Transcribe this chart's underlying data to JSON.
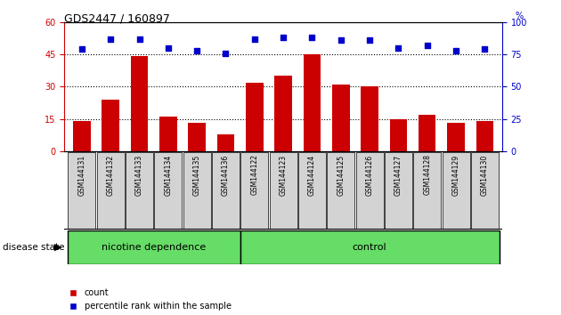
{
  "title": "GDS2447 / 160897",
  "samples": [
    "GSM144131",
    "GSM144132",
    "GSM144133",
    "GSM144134",
    "GSM144135",
    "GSM144136",
    "GSM144122",
    "GSM144123",
    "GSM144124",
    "GSM144125",
    "GSM144126",
    "GSM144127",
    "GSM144128",
    "GSM144129",
    "GSM144130"
  ],
  "counts": [
    14,
    24,
    44,
    16,
    13,
    8,
    32,
    35,
    45,
    31,
    30,
    15,
    17,
    13,
    14
  ],
  "percentiles": [
    79,
    87,
    87,
    80,
    78,
    76,
    87,
    88,
    88,
    86,
    86,
    80,
    82,
    78,
    79
  ],
  "nicotine_count": 6,
  "control_count": 9,
  "bar_color": "#cc0000",
  "dot_color": "#0000cc",
  "group_bg": "#66dd66",
  "tick_bg": "#d3d3d3",
  "ylim_left": [
    0,
    60
  ],
  "ylim_right": [
    0,
    100
  ],
  "yticks_left": [
    0,
    15,
    30,
    45,
    60
  ],
  "yticks_right": [
    0,
    25,
    50,
    75,
    100
  ],
  "grid_lines": [
    15,
    30,
    45
  ],
  "tick_label_color": "#cc0000",
  "right_tick_color": "#0000cc",
  "bg_color": "#ffffff"
}
